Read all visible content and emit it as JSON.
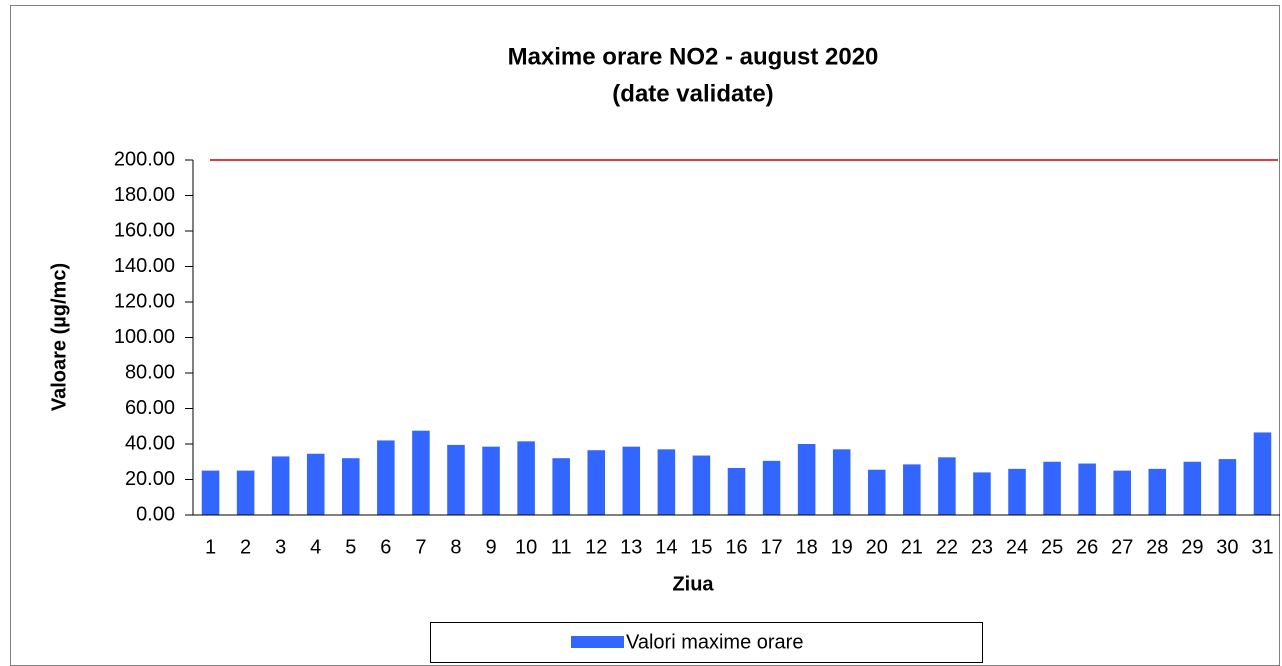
{
  "chart_data": {
    "type": "bar",
    "title": [
      "Maxime orare NO2 -  august 2020",
      "(date validate)"
    ],
    "x_label": "Ziua",
    "y_label": "Valoare (µg/mc)",
    "categories": [
      "1",
      "2",
      "3",
      "4",
      "5",
      "6",
      "7",
      "8",
      "9",
      "10",
      "11",
      "12",
      "13",
      "14",
      "15",
      "16",
      "17",
      "18",
      "19",
      "20",
      "21",
      "22",
      "23",
      "24",
      "25",
      "26",
      "27",
      "28",
      "29",
      "30",
      "31"
    ],
    "series": [
      {
        "name": "Valori maxime orare",
        "color": "#3366ff",
        "values": [
          25,
          25,
          33,
          34.5,
          32,
          42,
          47.5,
          39.5,
          38.5,
          41.5,
          32,
          36.5,
          38.5,
          37,
          33.5,
          26.5,
          30.5,
          40,
          37,
          25.5,
          28.5,
          32.5,
          24,
          26,
          30,
          29,
          25,
          26,
          30,
          31.5,
          46.5
        ]
      }
    ],
    "limit_line": {
      "value": 200,
      "color": "#cc0000"
    },
    "ylim": [
      0,
      200
    ],
    "yticks": [
      {
        "value": 0,
        "label": "0.00"
      },
      {
        "value": 20,
        "label": "20.00"
      },
      {
        "value": 40,
        "label": "40.00"
      },
      {
        "value": 60,
        "label": "60.00"
      },
      {
        "value": 80,
        "label": "80.00"
      },
      {
        "value": 100,
        "label": "100.00"
      },
      {
        "value": 120,
        "label": "120.00"
      },
      {
        "value": 140,
        "label": "140.00"
      },
      {
        "value": 160,
        "label": "160.00"
      },
      {
        "value": 180,
        "label": "180.00"
      },
      {
        "value": 200,
        "label": "200.00"
      }
    ],
    "legend": "bottom"
  }
}
